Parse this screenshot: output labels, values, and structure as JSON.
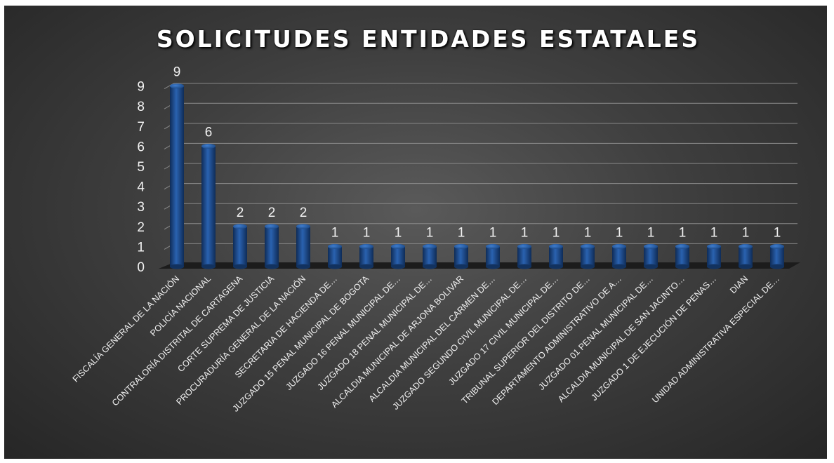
{
  "chart_data": {
    "type": "bar",
    "title": "SOLICITUDES ENTIDADES ESTATALES",
    "xlabel": "",
    "ylabel": "",
    "ylim": [
      0,
      9
    ],
    "yticks": [
      0,
      1,
      2,
      3,
      4,
      5,
      6,
      7,
      8,
      9
    ],
    "grid": true,
    "bar_color": "#1f4e8c",
    "categories": [
      "FISCALÍA GENERAL DE LA NACIÓN",
      "POLICÍA NACIONAL",
      "CONTRALORÍA DISTRITAL DE CARTAGENA",
      "CORTE SUPREMA DE JUSTICIA",
      "PROCURADURÍA GENERAL DE LA NACIÓN",
      "SECRETARIA DE HACIENDA DE…",
      "JUZGADO 15 PENAL MUNICIPAL DE BOGOTA",
      "JUZGADO 16 PENAL MUNICIPAL DE…",
      "JUZGADO 18 PENAL MUNICIPAL DE…",
      "ALCALDIA MUNICIPAL DE ARJONA BOLIVAR",
      "ALCALDIA MUNICIPAL DEL CARMEN DE…",
      "JUZGADO SEGUNDO CIVIL MUNICIPAL DE…",
      "JUZGADO 17 CIVIL MUNICIPAL DE…",
      "TRIBUNAL SUPERIOR DEL DISTRITO DE…",
      "DEPARTAMENTO ADMINISTRATIVO DE A…",
      "JUZGADO 01 PENAL MUNICIPAL DE…",
      "ALCALDIA MUNICIPAL DE SAN JACINTO…",
      "JUZGADO 1 DE EJECUCIÓN DE PENAS…",
      "DIAN",
      "UNIDAD ADMINISTRATIVA ESPECIAL DE…"
    ],
    "values": [
      9,
      6,
      2,
      2,
      2,
      1,
      1,
      1,
      1,
      1,
      1,
      1,
      1,
      1,
      1,
      1,
      1,
      1,
      1,
      1
    ]
  }
}
